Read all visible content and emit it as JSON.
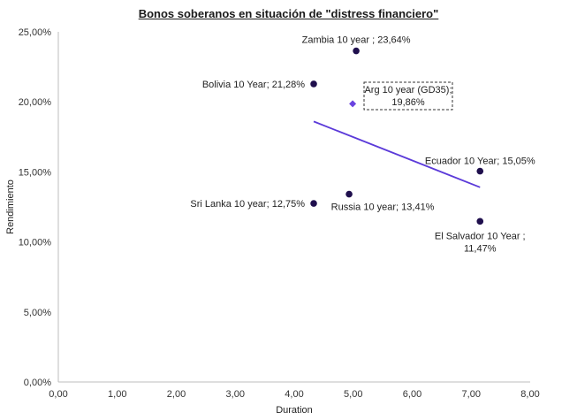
{
  "chart_data": {
    "type": "scatter",
    "title": "Bonos soberanos en situación de \"distress financiero\"",
    "xlabel": "Duration",
    "ylabel": "Rendimiento",
    "xlim": [
      0,
      8
    ],
    "ylim": [
      0,
      25
    ],
    "x_ticks": [
      "0,00",
      "1,00",
      "2,00",
      "3,00",
      "4,00",
      "5,00",
      "6,00",
      "7,00",
      "8,00"
    ],
    "y_ticks": [
      "0,00%",
      "5,00%",
      "10,00%",
      "15,00%",
      "20,00%",
      "25,00%"
    ],
    "grid": false,
    "legend": "none",
    "point_color": "#1f0f4d",
    "highlight_color": "#6a43e0",
    "trendline_color": "#5b3ad9",
    "points": [
      {
        "x": 5.05,
        "y": 23.64,
        "label": "Zambia 10 year ; 23,64%"
      },
      {
        "x": 4.33,
        "y": 21.28,
        "label": "Bolivia 10 Year; 21,28%"
      },
      {
        "x": 7.15,
        "y": 15.05,
        "label": "Ecuador 10 Year; 15,05%"
      },
      {
        "x": 4.33,
        "y": 12.75,
        "label": "Sri Lanka 10 year; 12,75%"
      },
      {
        "x": 4.93,
        "y": 13.41,
        "label": "Russia 10 year; 13,41%"
      },
      {
        "x": 7.15,
        "y": 11.47,
        "label": "El Salvador 10 Year ;",
        "label2": "11,47%"
      }
    ],
    "highlight": {
      "x": 4.99,
      "y": 19.86,
      "label": "Arg 10 year (GD35);",
      "label2": "19,86%"
    },
    "trendline": {
      "x1": 4.33,
      "y1": 18.6,
      "x2": 7.15,
      "y2": 13.9
    }
  }
}
